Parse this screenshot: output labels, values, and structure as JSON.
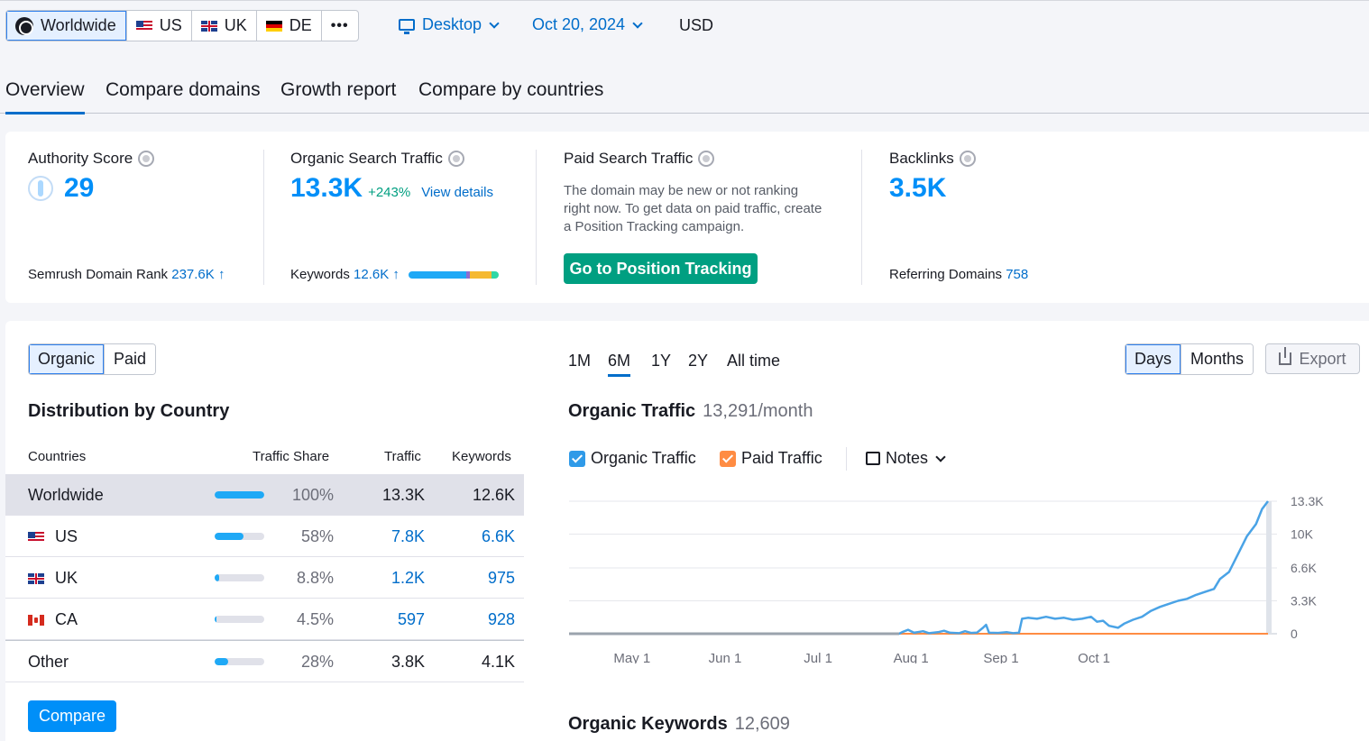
{
  "regions": [
    {
      "label": "Worldwide",
      "active": true
    },
    {
      "label": "US"
    },
    {
      "label": "UK"
    },
    {
      "label": "DE"
    },
    {
      "label": "•••"
    }
  ],
  "device": "Desktop",
  "date": "Oct 20, 2024",
  "currency": "USD",
  "tabs": [
    "Overview",
    "Compare domains",
    "Growth report",
    "Compare by countries"
  ],
  "metrics": {
    "authority": {
      "title": "Authority Score",
      "value": "29",
      "rank_label": "Semrush Domain Rank",
      "rank_value": "237.6K ↑"
    },
    "organic": {
      "title": "Organic Search Traffic",
      "value": "13.3K",
      "change": "+243%",
      "link": "View details",
      "kw_label": "Keywords",
      "kw_value": "12.6K ↑"
    },
    "paid": {
      "title": "Paid Search Traffic",
      "desc": "The domain may be new or not ranking right now. To get data on paid traffic, create a Position Tracking campaign.",
      "cta": "Go to Position Tracking"
    },
    "backlinks": {
      "title": "Backlinks",
      "value": "3.5K",
      "ref_label": "Referring Domains",
      "ref_value": "758"
    }
  },
  "toggle": [
    "Organic",
    "Paid"
  ],
  "distribution": {
    "title": "Distribution by Country",
    "headers": [
      "Countries",
      "Traffic Share",
      "Traffic",
      "Keywords"
    ],
    "rows": [
      {
        "name": "Worldwide",
        "share": "100%",
        "share_pct": 100,
        "traffic": "13.3K",
        "keywords": "12.6K"
      },
      {
        "name": "US",
        "share": "58%",
        "share_pct": 58,
        "traffic": "7.8K",
        "keywords": "6.6K"
      },
      {
        "name": "UK",
        "share": "8.8%",
        "share_pct": 8.8,
        "traffic": "1.2K",
        "keywords": "975"
      },
      {
        "name": "CA",
        "share": "4.5%",
        "share_pct": 4.5,
        "traffic": "597",
        "keywords": "928"
      },
      {
        "name": "Other",
        "share": "28%",
        "share_pct": 28,
        "traffic": "3.8K",
        "keywords": "4.1K"
      }
    ],
    "compare_btn": "Compare"
  },
  "periods": [
    "1M",
    "6M",
    "1Y",
    "2Y",
    "All time"
  ],
  "granularity": [
    "Days",
    "Months"
  ],
  "export": "Export",
  "traffic": {
    "title": "Organic Traffic",
    "value": "13,291/month",
    "legend": [
      "Organic Traffic",
      "Paid Traffic"
    ],
    "notes": "Notes"
  },
  "keywords_title": "Organic Keywords",
  "keywords_value": "12,609",
  "colors": {
    "organic": "#4aa3e6",
    "paid": "#ff8c43",
    "accent": "#006dca",
    "cta": "#009f81"
  },
  "chart_data": {
    "type": "line",
    "x_ticks": [
      "May 1",
      "Jun 1",
      "Jul 1",
      "Aug 1",
      "Sep 1",
      "Oct 1"
    ],
    "y_ticks": [
      "0",
      "3.3K",
      "6.6K",
      "10K",
      "13.3K"
    ],
    "ylim": [
      0,
      13300
    ],
    "series": [
      {
        "name": "Organic Traffic",
        "values": [
          [
            0,
            0
          ],
          [
            110,
            0
          ],
          [
            111,
            150
          ],
          [
            113,
            400
          ],
          [
            115,
            100
          ],
          [
            118,
            250
          ],
          [
            120,
            50
          ],
          [
            123,
            150
          ],
          [
            125,
            300
          ],
          [
            127,
            100
          ],
          [
            130,
            50
          ],
          [
            132,
            250
          ],
          [
            134,
            80
          ],
          [
            136,
            120
          ],
          [
            138,
            600
          ],
          [
            139,
            900
          ],
          [
            140,
            100
          ],
          [
            143,
            80
          ],
          [
            146,
            150
          ],
          [
            148,
            50
          ],
          [
            150,
            100
          ],
          [
            151,
            1500
          ],
          [
            153,
            1600
          ],
          [
            156,
            1500
          ],
          [
            159,
            1700
          ],
          [
            162,
            1500
          ],
          [
            165,
            1600
          ],
          [
            168,
            1400
          ],
          [
            171,
            1500
          ],
          [
            174,
            1700
          ],
          [
            176,
            1200
          ],
          [
            178,
            1300
          ],
          [
            180,
            800
          ],
          [
            183,
            600
          ],
          [
            185,
            1000
          ],
          [
            188,
            1400
          ],
          [
            191,
            1700
          ],
          [
            194,
            2300
          ],
          [
            197,
            2700
          ],
          [
            200,
            3000
          ],
          [
            203,
            3300
          ],
          [
            206,
            3500
          ],
          [
            209,
            3900
          ],
          [
            212,
            4200
          ],
          [
            215,
            4500
          ],
          [
            217,
            5500
          ],
          [
            220,
            6200
          ],
          [
            223,
            8000
          ],
          [
            226,
            9800
          ],
          [
            229,
            11000
          ],
          [
            231,
            12500
          ],
          [
            233,
            13300
          ]
        ]
      },
      {
        "name": "Paid Traffic",
        "values": [
          [
            0,
            0
          ],
          [
            233,
            0
          ]
        ]
      }
    ]
  }
}
